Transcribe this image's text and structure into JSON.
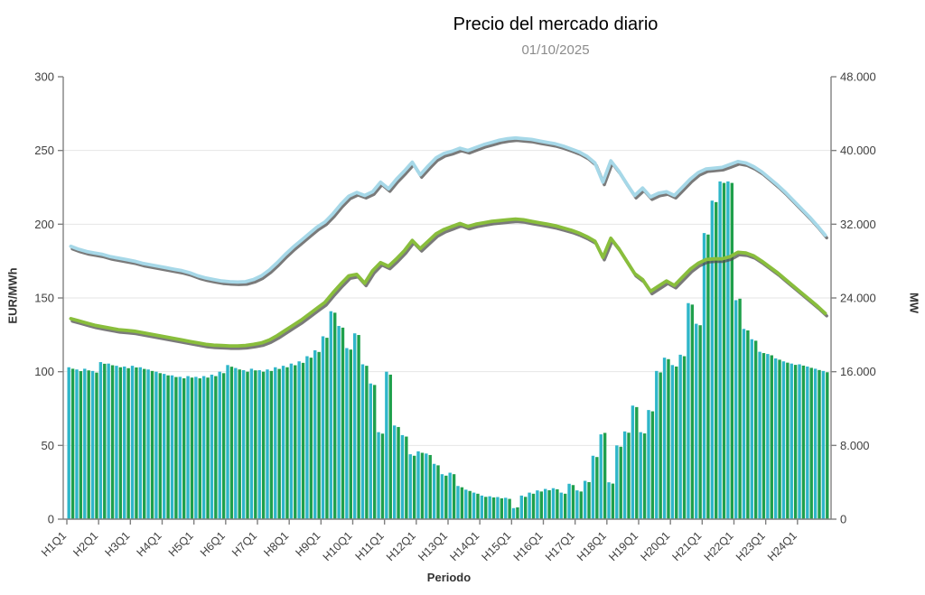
{
  "header": {
    "title": "Precio del mercado diario",
    "subtitle": "01/10/2025"
  },
  "chart_data": {
    "type": "composite",
    "title": "Precio del mercado diario",
    "subtitle": "01/10/2025",
    "grid": "horizontal-only",
    "legend": "none",
    "x_axis": {
      "label": "Periodo",
      "tick_labels": [
        "H1Q1",
        "H2Q1",
        "H3Q1",
        "H4Q1",
        "H5Q1",
        "H6Q1",
        "H7Q1",
        "H8Q1",
        "H9Q1",
        "H10Q1",
        "H11Q1",
        "H12Q1",
        "H13Q1",
        "H14Q1",
        "H15Q1",
        "H16Q1",
        "H17Q1",
        "H18Q1",
        "H19Q1",
        "H20Q1",
        "H21Q1",
        "H22Q1",
        "H23Q1",
        "H24Q1"
      ],
      "periods_per_hour": 4,
      "total_periods": 96
    },
    "y_axis_left": {
      "label": "EUR/MWh",
      "min": 0,
      "max": 300,
      "tick_step": 50,
      "tick_labels": [
        "0",
        "50",
        "100",
        "150",
        "200",
        "250",
        "300"
      ]
    },
    "y_axis_right": {
      "label": "MW",
      "min": 0,
      "max": 48000,
      "tick_step": 8000,
      "tick_labels": [
        "0",
        "8.000",
        "16.000",
        "24.000",
        "32.000",
        "40.000",
        "48.000"
      ]
    },
    "styles": {
      "background": "#ffffff",
      "grid_color": "#e6e6e6",
      "axis_color": "#808080",
      "tick_text_color": "#404040",
      "line_shadow_color": "#4d4d4d"
    },
    "series": [
      {
        "name": "linea-azul-precio",
        "type": "line",
        "axis": "left",
        "unit": "EUR/MWh",
        "color": "#a6d8e8",
        "values": [
          185,
          183,
          181.5,
          180.5,
          179.5,
          178,
          177,
          176,
          175,
          173.5,
          172.5,
          171.5,
          170.5,
          169.5,
          168.5,
          167,
          165,
          163.5,
          162.5,
          161.5,
          161,
          160.8,
          161,
          162.5,
          165,
          169,
          174,
          179.5,
          184.5,
          189,
          193.5,
          198,
          201.5,
          207,
          213.5,
          219,
          221.5,
          219.5,
          222,
          228.5,
          224,
          230.5,
          236,
          242,
          233.5,
          239.5,
          245,
          248,
          249.5,
          251.5,
          250,
          252,
          254,
          255.5,
          257,
          258,
          258.5,
          258,
          257.5,
          256.5,
          255.5,
          254.5,
          253,
          251,
          249,
          246,
          241.5,
          228.5,
          243,
          236,
          227.5,
          219.5,
          224.5,
          218.5,
          221,
          222,
          219.5,
          225,
          230.5,
          235,
          237.5,
          238,
          238.5,
          240.5,
          242.5,
          241.5,
          239,
          235.5,
          231,
          226.5,
          221.5,
          216,
          210.5,
          205,
          199,
          192.5
        ]
      },
      {
        "name": "linea-verde-precio",
        "type": "line",
        "axis": "left",
        "unit": "EUR/MWh",
        "color": "#89be3c",
        "values": [
          136,
          134.5,
          133,
          131.5,
          130.5,
          129.5,
          128.5,
          128,
          127.5,
          126.5,
          125.5,
          124.5,
          123.5,
          122.5,
          121.5,
          120.5,
          119.5,
          118.5,
          118,
          117.8,
          117.5,
          117.5,
          117.8,
          118.5,
          119.5,
          121.5,
          124.5,
          128,
          131.5,
          135,
          139,
          143,
          147,
          153.5,
          159.5,
          165,
          166,
          160,
          168.5,
          174,
          171.5,
          176.5,
          182,
          189,
          183.5,
          188.5,
          193.5,
          196.5,
          198.5,
          200.5,
          198.5,
          200,
          201,
          202,
          202.5,
          203,
          203.5,
          203,
          202,
          201,
          200,
          199,
          197.5,
          196,
          194,
          191.5,
          188.5,
          177.5,
          190.5,
          183.5,
          175,
          166.5,
          162.5,
          154.5,
          158,
          161.5,
          158.5,
          164,
          169.5,
          173.5,
          176,
          176.5,
          176.5,
          178,
          181,
          180.5,
          178.5,
          175,
          171,
          167,
          162.5,
          158,
          153.5,
          149,
          144.5,
          139.5
        ]
      },
      {
        "name": "barras-cian-energia",
        "type": "bar",
        "axis": "right",
        "unit": "MW",
        "color": "#2eb6c9",
        "values": [
          16480,
          16240,
          16320,
          16080,
          17040,
          16880,
          16640,
          16560,
          16640,
          16480,
          16240,
          16000,
          15760,
          15600,
          15440,
          15520,
          15440,
          15520,
          15680,
          16000,
          16720,
          16400,
          16160,
          16320,
          16160,
          16240,
          16480,
          16640,
          16880,
          17120,
          17680,
          18320,
          19840,
          22560,
          20960,
          18560,
          20160,
          16800,
          14720,
          9440,
          16000,
          10160,
          9120,
          7040,
          7360,
          7120,
          6000,
          4880,
          5040,
          3600,
          3200,
          2880,
          2560,
          2480,
          2400,
          2320,
          1200,
          2560,
          2880,
          3120,
          3280,
          3360,
          2880,
          3840,
          3120,
          4160,
          6880,
          9200,
          4000,
          8000,
          9520,
          12320,
          9440,
          11840,
          16080,
          17520,
          16720,
          17840,
          23440,
          21200,
          31040,
          34560,
          36640,
          36640,
          23760,
          20640,
          19520,
          18160,
          17920,
          17440,
          17120,
          16880,
          16800,
          16560,
          16320,
          16080
        ]
      },
      {
        "name": "barras-verdes-energia",
        "type": "bar",
        "axis": "right",
        "unit": "MW",
        "color": "#1fa04c",
        "values": [
          16320,
          16060,
          16140,
          15900,
          16860,
          16700,
          16480,
          16380,
          16460,
          16300,
          16080,
          15840,
          15600,
          15420,
          15280,
          15360,
          15280,
          15360,
          15520,
          15840,
          16540,
          16240,
          16000,
          16140,
          16000,
          16080,
          16300,
          16480,
          16700,
          16960,
          17520,
          18140,
          19680,
          22400,
          20780,
          18400,
          19980,
          16640,
          14560,
          9280,
          15680,
          10000,
          8960,
          6880,
          7200,
          6960,
          5840,
          4720,
          4880,
          3460,
          3060,
          2760,
          2420,
          2360,
          2260,
          2200,
          1280,
          2420,
          2760,
          3000,
          3140,
          3240,
          2760,
          3700,
          3000,
          4020,
          6740,
          9360,
          3860,
          7860,
          9380,
          12160,
          9300,
          11700,
          15920,
          17360,
          16560,
          17680,
          23280,
          21040,
          30880,
          34400,
          36480,
          36480,
          23920,
          20480,
          19360,
          18020,
          17780,
          17300,
          16980,
          16740,
          16660,
          16420,
          16180,
          15940
        ]
      }
    ]
  }
}
